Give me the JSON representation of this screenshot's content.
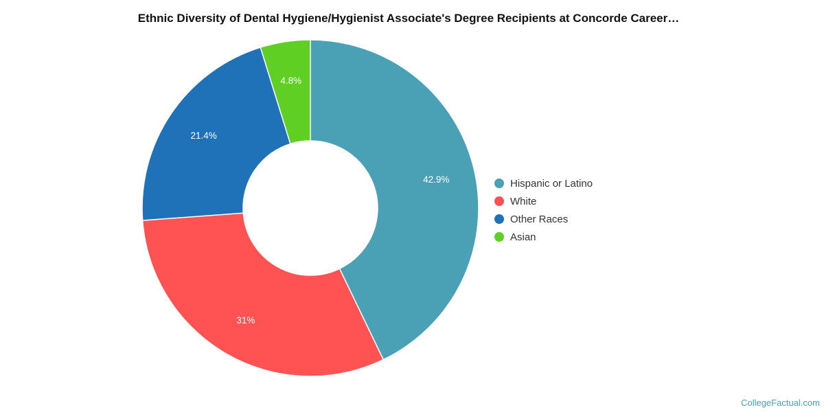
{
  "chart_data": {
    "type": "pie",
    "title": "Ethnic Diversity of Dental Hygiene/Hygienist Associate's Degree Recipients at Concorde Career…",
    "slices": [
      {
        "label": "Hispanic or Latino",
        "value": 42.9,
        "display": "42.9%",
        "color": "#4aa0b5"
      },
      {
        "label": "White",
        "value": 31.0,
        "display": "31%",
        "color": "#ff5252"
      },
      {
        "label": "Other Races",
        "value": 21.4,
        "display": "21.4%",
        "color": "#1f72b8"
      },
      {
        "label": "Asian",
        "value": 4.8,
        "display": "4.8%",
        "color": "#60cf23"
      }
    ],
    "legend_position": "right",
    "donut": true
  },
  "footer": {
    "source": "CollegeFactual.com"
  }
}
